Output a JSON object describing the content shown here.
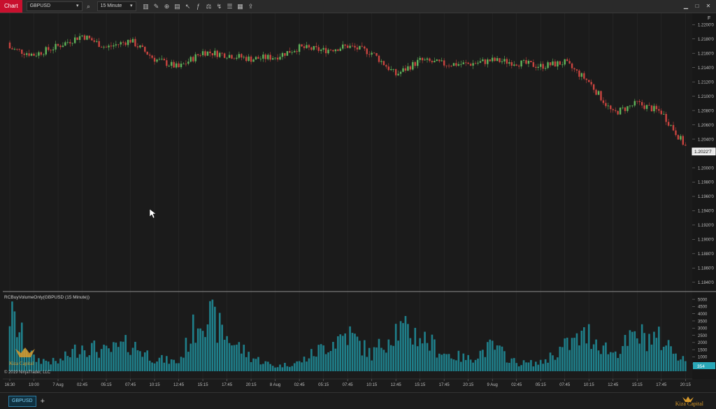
{
  "toolbar": {
    "chart_tab": "Chart",
    "instrument": "GBPUSD",
    "interval": "15 Minute"
  },
  "main_panel": {
    "price_scale": [
      "1.2200'0",
      "1.2180'0",
      "1.2160'0",
      "1.2140'0",
      "1.2120'0",
      "1.2100'0",
      "1.2080'0",
      "1.2060'0",
      "1.2040'0",
      "1.2000'0",
      "1.1980'0",
      "1.1960'0",
      "1.1940'0",
      "1.1920'0",
      "1.1900'0",
      "1.1880'0",
      "1.1860'0",
      "1.1840'0"
    ],
    "last_price": "1.2022'7",
    "panel_letter": "F"
  },
  "volume_panel": {
    "label": "RCBuyVolumeOnly(GBPUSD (15 Minute))",
    "scale": [
      "5000",
      "4500",
      "4000",
      "3500",
      "3000",
      "2500",
      "2000",
      "1500",
      "1000",
      "500"
    ],
    "last_value": "354"
  },
  "time_axis": [
    "16:30",
    "19:00",
    "7 Aug",
    "02:45",
    "05:15",
    "07:45",
    "10:15",
    "12:45",
    "15:15",
    "17:45",
    "20:15",
    "8 Aug",
    "02:45",
    "05:15",
    "07:45",
    "10:15",
    "12:45",
    "15:15",
    "17:45",
    "20:15",
    "9 Aug",
    "02:45",
    "05:15",
    "07:45",
    "10:15",
    "12:45",
    "15:15",
    "17:45",
    "20:15"
  ],
  "copyright": "© 2019 NinjaTrader, LLC",
  "watermark": "Kiza Capital",
  "bottom_tab": "GBPUSD",
  "colors": {
    "up": "#5fb35a",
    "down": "#c9443f",
    "volume": "#1f7f8a",
    "last_price_tag": "#2aa8b8",
    "chart_tab": "#c8102e"
  },
  "chart_data": {
    "type": "candlestick",
    "x": [
      "16:30",
      "19:00",
      "7 Aug",
      "02:45",
      "05:15",
      "07:45",
      "10:15",
      "12:45",
      "15:15",
      "17:45",
      "20:15",
      "8 Aug",
      "02:45",
      "05:15",
      "07:45",
      "10:15",
      "12:45",
      "15:15",
      "17:45",
      "20:15",
      "9 Aug",
      "02:45",
      "05:15",
      "07:45",
      "10:15",
      "12:45",
      "15:15",
      "17:45",
      "20:15"
    ],
    "close": [
      1.2167,
      1.2158,
      1.217,
      1.2185,
      1.2168,
      1.2178,
      1.2152,
      1.214,
      1.2162,
      1.2158,
      1.2152,
      1.2155,
      1.2168,
      1.2164,
      1.217,
      1.2161,
      1.213,
      1.215,
      1.2145,
      1.2145,
      1.215,
      1.2147,
      1.2142,
      1.2147,
      1.212,
      1.2076,
      1.209,
      1.2078,
      1.203
    ],
    "volume": [
      4200,
      900,
      650,
      1900,
      1400,
      2000,
      950,
      650,
      4500,
      2500,
      1050,
      350,
      650,
      1750,
      2800,
      1200,
      3100,
      2600,
      1300,
      900,
      1800,
      600,
      600,
      1800,
      2700,
      1300,
      2600,
      2300,
      850
    ],
    "ylim": [
      1.183,
      1.221
    ],
    "volume_ylim": [
      0,
      5200
    ],
    "last_price": 1.20227,
    "last_volume": 354
  }
}
